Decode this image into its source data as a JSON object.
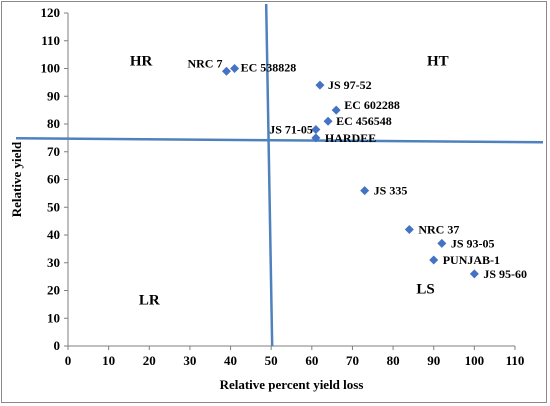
{
  "chart_data": {
    "type": "scatter",
    "xlabel": "Relative percent yield loss",
    "ylabel": "Relative yield",
    "xlim": [
      0,
      110
    ],
    "ylim": [
      0,
      120
    ],
    "x_ticks": [
      0,
      10,
      20,
      30,
      40,
      50,
      60,
      70,
      80,
      90,
      100,
      110
    ],
    "y_ticks": [
      0,
      10,
      20,
      30,
      40,
      50,
      60,
      70,
      80,
      90,
      100,
      110,
      120
    ],
    "marker_color": "#4472c4",
    "line_color": "#4f81bd",
    "divider_x": 50,
    "divider_y": 74.5,
    "points": [
      {
        "label": "NRC 7",
        "x": 39,
        "y": 99
      },
      {
        "label": "EC 538828",
        "x": 41,
        "y": 100
      },
      {
        "label": "JS 97-52",
        "x": 62,
        "y": 94
      },
      {
        "label": "EC 602288",
        "x": 66,
        "y": 85
      },
      {
        "label": "EC 456548",
        "x": 64,
        "y": 81
      },
      {
        "label": "JS 71-05",
        "x": 61,
        "y": 78
      },
      {
        "label": "HARDEE",
        "x": 61,
        "y": 75
      },
      {
        "label": "JS 335",
        "x": 73,
        "y": 56
      },
      {
        "label": "NRC 37",
        "x": 84,
        "y": 42
      },
      {
        "label": "JS 93-05",
        "x": 92,
        "y": 37
      },
      {
        "label": "PUNJAB-1",
        "x": 90,
        "y": 31
      },
      {
        "label": "JS 95-60",
        "x": 100,
        "y": 26
      }
    ],
    "quadrant_labels": [
      {
        "text": "HR",
        "x": 18,
        "y": 101
      },
      {
        "text": "HT",
        "x": 91,
        "y": 101
      },
      {
        "text": "LR",
        "x": 20,
        "y": 15
      },
      {
        "text": "LS",
        "x": 88,
        "y": 19
      }
    ]
  }
}
